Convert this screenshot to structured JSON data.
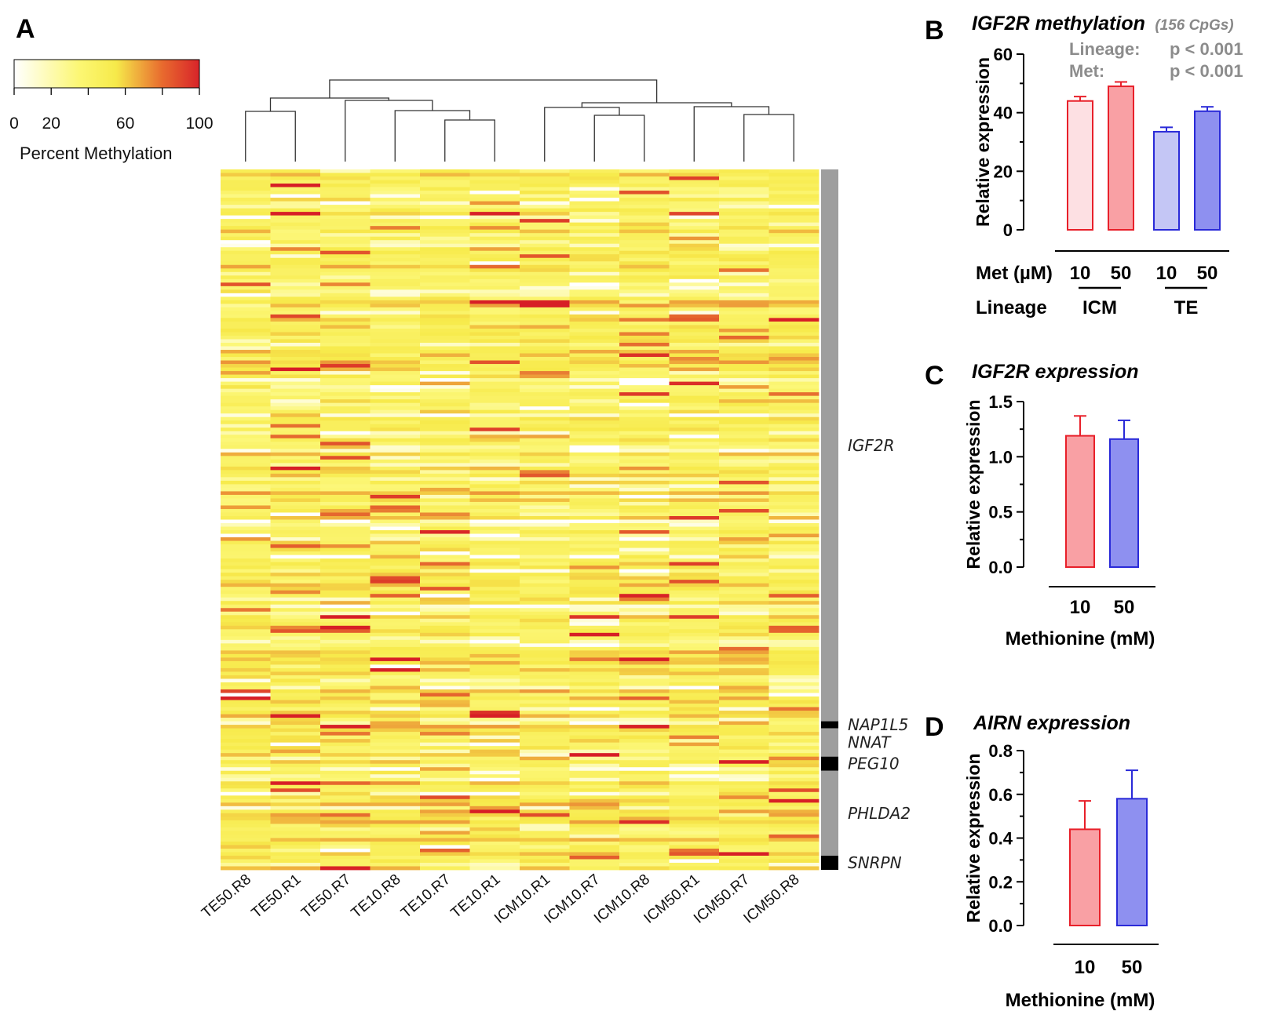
{
  "panel_labels": {
    "a": "A",
    "b": "B",
    "c": "C",
    "d": "D"
  },
  "colorbar": {
    "title": "Percent Methylation",
    "ticks": [
      "0",
      "20",
      "60",
      "100"
    ],
    "tick_values": [
      0,
      20,
      60,
      100
    ],
    "range": [
      0,
      100
    ],
    "colors": [
      "#ffffff",
      "#fcf774",
      "#f6ea4a",
      "#e86a2e",
      "#d8242a"
    ]
  },
  "chart_data": [
    {
      "type": "heatmap",
      "panel": "A",
      "title": "",
      "columns": [
        "TE50.R8",
        "TE50.R1",
        "TE50.R7",
        "TE10.R8",
        "TE10.R7",
        "TE10.R1",
        "ICM10.R1",
        "ICM10.R7",
        "ICM10.R8",
        "ICM50.R1",
        "ICM50.R7",
        "ICM50.R8"
      ],
      "genes": [
        {
          "name": "IGF2R",
          "rows": 156,
          "bar_color": "#9e9e9e"
        },
        {
          "name": "NAP1L5",
          "rows": 2,
          "bar_color": "#000000"
        },
        {
          "name": "NNAT",
          "rows": 8,
          "bar_color": "#9e9e9e"
        },
        {
          "name": "PEG10",
          "rows": 4,
          "bar_color": "#000000"
        },
        {
          "name": "PHLDA2",
          "rows": 24,
          "bar_color": "#9e9e9e"
        },
        {
          "name": "SNRPN",
          "rows": 4,
          "bar_color": "#000000"
        }
      ],
      "row_count": 198,
      "value_range": [
        0,
        100
      ],
      "dendrogram": "hierarchical clustering of the 12 samples"
    },
    {
      "type": "bar",
      "panel": "B",
      "title": "IGF2R methylation",
      "subtitle": "(156 CpGs)",
      "ylabel": "Relative expression",
      "ylim": [
        0,
        60
      ],
      "yticks": [
        "0",
        "20",
        "40",
        "60"
      ],
      "x_row_label": "Met (µM)",
      "categories": [
        "10",
        "50",
        "10",
        "50"
      ],
      "group_row_label": "Lineage",
      "groups": [
        "ICM",
        "TE"
      ],
      "values": [
        44,
        49,
        33.5,
        40.5
      ],
      "errors": [
        1.5,
        1.5,
        1.5,
        1.5
      ],
      "fill_colors": [
        "#fde0e3",
        "#f9a0a4",
        "#c4c6f5",
        "#8e90f0"
      ],
      "edge_colors": [
        "#e8202a",
        "#e8202a",
        "#2a2ad8",
        "#2a2ad8"
      ],
      "stats": [
        {
          "label": "Lineage:",
          "value": "p < 0.001"
        },
        {
          "label": "Met:",
          "value": "p < 0.001"
        }
      ]
    },
    {
      "type": "bar",
      "panel": "C",
      "title": "IGF2R expression",
      "ylabel": "Relative expression",
      "xlabel": "Methionine (mM)",
      "ylim": [
        0,
        1.5
      ],
      "yticks": [
        "0.0",
        "0.5",
        "1.0",
        "1.5"
      ],
      "categories": [
        "10",
        "50"
      ],
      "values": [
        1.19,
        1.16
      ],
      "errors": [
        0.18,
        0.17
      ],
      "fill_colors": [
        "#f9a0a4",
        "#8e90f0"
      ],
      "edge_colors": [
        "#e8202a",
        "#2a2ad8"
      ]
    },
    {
      "type": "bar",
      "panel": "D",
      "title": "AIRN expression",
      "ylabel": "Relative expression",
      "xlabel": "Methionine (mM)",
      "ylim": [
        0,
        0.8
      ],
      "yticks": [
        "0.0",
        "0.2",
        "0.4",
        "0.6",
        "0.8"
      ],
      "categories": [
        "10",
        "50"
      ],
      "values": [
        0.44,
        0.58
      ],
      "errors": [
        0.13,
        0.13
      ],
      "fill_colors": [
        "#f9a0a4",
        "#8e90f0"
      ],
      "edge_colors": [
        "#e8202a",
        "#2a2ad8"
      ]
    }
  ]
}
